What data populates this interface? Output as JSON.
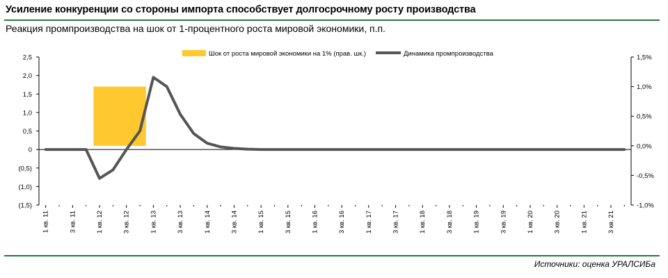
{
  "header": {
    "title": "Усиление конкуренции со стороны импорта способствует долгосрочному росту производства",
    "subtitle": "Реакция промпроизводства на шок от 1-процентного роста мировой экономики, п.п."
  },
  "footer": {
    "source": "Источники: оценка УРАЛСИБа"
  },
  "chart_data": {
    "type": "bar+line",
    "title": "",
    "xlabel": "",
    "ylabel": "",
    "y_left": {
      "lim": [
        -1.5,
        2.5
      ],
      "ticks": [
        2.5,
        2.0,
        1.5,
        1.0,
        0.5,
        0,
        -0.5,
        -1.0,
        -1.5
      ],
      "tick_labels": [
        "2,5",
        "2,0",
        "1,5",
        "1,0",
        "0,5",
        "0",
        "(0,5)",
        "(1,0)",
        "(1,5)"
      ]
    },
    "y_right": {
      "lim": [
        -1.0,
        1.5
      ],
      "ticks": [
        1.5,
        1.0,
        0.5,
        0.0,
        -0.5,
        -1.0
      ],
      "tick_labels": [
        "1,5%",
        "1,0%",
        "0,5%",
        "0,0%",
        "-0,5%",
        "-1,0%"
      ]
    },
    "x_tick_labels": [
      "1 кв. 11",
      "3 кв. 11",
      "1 кв. 12",
      "3 кв. 12",
      "1 кв. 13",
      "3 кв. 13",
      "1 кв. 14",
      "3 кв. 14",
      "1 кв. 15",
      "3 кв. 15",
      "1 кв. 16",
      "3 кв. 16",
      "1 кв. 17",
      "3 кв. 17",
      "1 кв. 18",
      "3 кв. 18",
      "1 кв. 19",
      "3 кв. 19",
      "1 кв. 20",
      "3 кв. 20",
      "1 кв. 21",
      "3 кв. 21"
    ],
    "legend_position": "top",
    "series": [
      {
        "name": "Шок от роста мировой экономики на 1% (прав. шк.)",
        "type": "bar",
        "axis": "right",
        "color": "#FFC82E",
        "quarters": [
          "1 кв. 12",
          "2 кв. 12",
          "3 кв. 12",
          "4 кв. 12"
        ],
        "value": 1.0
      },
      {
        "name": "Динамика промпроизводства",
        "type": "line",
        "axis": "left",
        "color": "#555555",
        "values": [
          0,
          0,
          0,
          0,
          -0.78,
          -0.55,
          0,
          0.5,
          1.95,
          1.7,
          0.95,
          0.43,
          0.17,
          0.07,
          0.03,
          0.01,
          0,
          0,
          0,
          0,
          0,
          0,
          0,
          0,
          0,
          0,
          0,
          0,
          0,
          0,
          0,
          0,
          0,
          0,
          0,
          0,
          0,
          0,
          0,
          0,
          0,
          0,
          0,
          0
        ]
      }
    ]
  }
}
